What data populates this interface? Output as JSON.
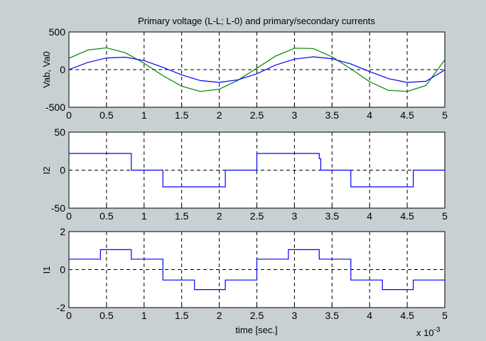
{
  "title": "Primary voltage (L-L; L-0) and primary/secondary currents",
  "x_exponent_label": "x 10",
  "x_exponent_power": "-3",
  "chart_data": [
    {
      "type": "line",
      "title": "Primary voltage (L-L; L-0) and primary/secondary currents",
      "ylabel": "Vab, Va0",
      "xlabel": "",
      "xlim": [
        0,
        5
      ],
      "ylim": [
        -500,
        500
      ],
      "x_ticks": [
        "0",
        "0.5",
        "1",
        "1.5",
        "2",
        "2.5",
        "3",
        "3.5",
        "4",
        "4.5",
        "5"
      ],
      "y_ticks": [
        "500",
        "0",
        "-500"
      ],
      "grid": true,
      "colors": [
        "#008000",
        "#0000ff"
      ],
      "x": [
        0,
        0.25,
        0.5,
        0.75,
        1.0,
        1.25,
        1.5,
        1.75,
        2.0,
        2.25,
        2.5,
        2.75,
        3.0,
        3.25,
        3.5,
        3.75,
        4.0,
        4.25,
        4.5,
        4.75,
        5.0
      ],
      "series": [
        {
          "values": [
            150,
            260,
            290,
            225,
            85,
            -80,
            -220,
            -290,
            -260,
            -140,
            20,
            180,
            285,
            280,
            170,
            10,
            -160,
            -275,
            -290,
            -210,
            130
          ]
        },
        {
          "values": [
            0,
            95,
            155,
            165,
            120,
            30,
            -70,
            -145,
            -170,
            -135,
            -55,
            60,
            140,
            170,
            145,
            75,
            -25,
            -120,
            -170,
            -155,
            -5
          ]
        }
      ]
    },
    {
      "type": "line",
      "ylabel": "I2",
      "xlabel": "",
      "xlim": [
        0,
        5
      ],
      "ylim": [
        -50,
        50
      ],
      "x_ticks": [
        "0",
        "0.5",
        "1",
        "1.5",
        "2",
        "2.5",
        "3",
        "3.5",
        "4",
        "4.5",
        "5"
      ],
      "y_ticks": [
        "50",
        "0",
        "-50"
      ],
      "grid": true,
      "colors": [
        "#0000ff"
      ],
      "x": [
        0,
        0.83,
        0.83,
        1.25,
        1.25,
        2.08,
        2.08,
        2.5,
        2.5,
        3.33,
        3.33,
        3.35,
        3.35,
        3.75,
        3.75,
        4.58,
        4.58,
        5.0
      ],
      "series": [
        {
          "values": [
            22,
            22,
            0,
            0,
            -22,
            -22,
            0,
            0,
            22,
            22,
            15,
            15,
            0,
            0,
            -22,
            -22,
            0,
            0
          ]
        }
      ]
    },
    {
      "type": "line",
      "ylabel": "I1",
      "xlabel": "time [sec.]",
      "xlim": [
        0,
        5
      ],
      "ylim": [
        -2,
        2
      ],
      "x_ticks": [
        "0",
        "0.5",
        "1",
        "1.5",
        "2",
        "2.5",
        "3",
        "3.5",
        "4",
        "4.5",
        "5"
      ],
      "y_ticks": [
        "2",
        "0",
        "-2"
      ],
      "grid": true,
      "colors": [
        "#0000ff"
      ],
      "x": [
        0,
        0.42,
        0.42,
        0.83,
        0.83,
        1.25,
        1.25,
        1.67,
        1.67,
        2.08,
        2.08,
        2.5,
        2.5,
        2.92,
        2.92,
        3.33,
        3.33,
        3.75,
        3.75,
        4.17,
        4.17,
        4.58,
        4.58,
        5.0
      ],
      "series": [
        {
          "values": [
            0.55,
            0.55,
            1.05,
            1.05,
            0.55,
            0.55,
            -0.55,
            -0.55,
            -1.05,
            -1.05,
            -0.55,
            -0.55,
            0.55,
            0.55,
            1.05,
            1.05,
            0.55,
            0.55,
            -0.55,
            -0.55,
            -1.05,
            -1.05,
            -0.55,
            -0.55
          ]
        }
      ]
    }
  ]
}
